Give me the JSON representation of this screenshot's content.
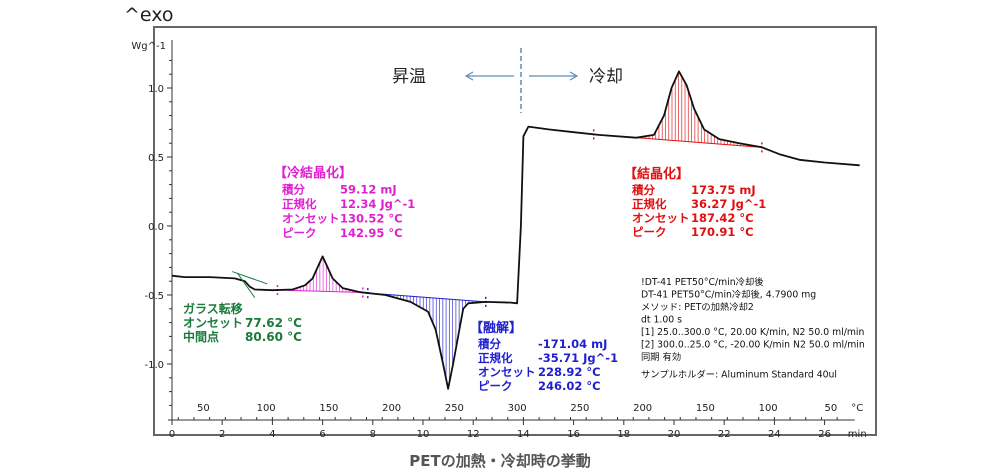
{
  "exo_label": "^exo",
  "caption": "PETの加熱・冷却時の挙動",
  "direction": {
    "heating": "昇温",
    "cooling": "冷却"
  },
  "chart_data": {
    "type": "line",
    "title": "PETの加熱・冷却時の挙動",
    "ylabel": "Wg^-1",
    "ylim": [
      -1.35,
      1.25
    ],
    "yticks": [
      1.0,
      0.5,
      0.0,
      -0.5,
      -1.0
    ],
    "ytick_labels": [
      "1.0",
      "0.5",
      "0.0",
      "-0.5",
      "-1.0"
    ],
    "xlabel": "min",
    "xlim": [
      0,
      27.5
    ],
    "xticks": [
      0,
      2,
      4,
      6,
      8,
      10,
      12,
      14,
      16,
      18,
      20,
      22,
      24,
      26
    ],
    "xtick_labels": [
      "0",
      "2",
      "4",
      "6",
      "8",
      "10",
      "12",
      "14",
      "16",
      "18",
      "20",
      "22",
      "24",
      "26"
    ],
    "temp_axis_label": "°C",
    "temp_ticks": [
      {
        "min": 1.25,
        "label": "50"
      },
      {
        "min": 3.75,
        "label": "100"
      },
      {
        "min": 6.25,
        "label": "150"
      },
      {
        "min": 8.75,
        "label": "200"
      },
      {
        "min": 11.25,
        "label": "250"
      },
      {
        "min": 13.75,
        "label": "300"
      },
      {
        "min": 16.25,
        "label": "250"
      },
      {
        "min": 18.75,
        "label": "200"
      },
      {
        "min": 21.25,
        "label": "150"
      },
      {
        "min": 23.75,
        "label": "100"
      },
      {
        "min": 26.25,
        "label": "50"
      }
    ],
    "curve": [
      [
        0.0,
        -0.36
      ],
      [
        0.5,
        -0.37
      ],
      [
        1.5,
        -0.37
      ],
      [
        2.5,
        -0.38
      ],
      [
        2.9,
        -0.4
      ],
      [
        3.1,
        -0.44
      ],
      [
        3.3,
        -0.46
      ],
      [
        4.0,
        -0.465
      ],
      [
        4.8,
        -0.46
      ],
      [
        5.3,
        -0.43
      ],
      [
        5.6,
        -0.38
      ],
      [
        5.85,
        -0.28
      ],
      [
        6.0,
        -0.22
      ],
      [
        6.15,
        -0.28
      ],
      [
        6.4,
        -0.38
      ],
      [
        6.8,
        -0.45
      ],
      [
        7.5,
        -0.48
      ],
      [
        8.5,
        -0.5
      ],
      [
        9.5,
        -0.55
      ],
      [
        10.2,
        -0.62
      ],
      [
        10.5,
        -0.75
      ],
      [
        10.8,
        -1.0
      ],
      [
        11.0,
        -1.18
      ],
      [
        11.2,
        -1.0
      ],
      [
        11.45,
        -0.75
      ],
      [
        11.6,
        -0.6
      ],
      [
        11.8,
        -0.56
      ],
      [
        12.5,
        -0.55
      ],
      [
        13.5,
        -0.555
      ],
      [
        13.75,
        -0.56
      ],
      [
        13.9,
        0.0
      ],
      [
        14.0,
        0.65
      ],
      [
        14.2,
        0.72
      ],
      [
        15.0,
        0.7
      ],
      [
        16.0,
        0.68
      ],
      [
        17.0,
        0.66
      ],
      [
        18.5,
        0.64
      ],
      [
        19.2,
        0.66
      ],
      [
        19.6,
        0.8
      ],
      [
        19.9,
        1.0
      ],
      [
        20.2,
        1.12
      ],
      [
        20.5,
        1.02
      ],
      [
        20.8,
        0.85
      ],
      [
        21.2,
        0.7
      ],
      [
        21.8,
        0.63
      ],
      [
        22.6,
        0.6
      ],
      [
        23.5,
        0.57
      ],
      [
        24.2,
        0.52
      ],
      [
        25.0,
        0.48
      ],
      [
        26.0,
        0.46
      ],
      [
        27.4,
        0.44
      ]
    ],
    "annotations": {
      "glass_transition": {
        "title": "ガラス転移",
        "rows": [
          {
            "label": "オンセット",
            "value": "77.62 °C"
          },
          {
            "label": "中間点",
            "value": "80.60 °C"
          }
        ],
        "color": "#1a7a3a"
      },
      "cold_crystallization": {
        "title": "【冷結晶化】",
        "rows": [
          {
            "label": "積分",
            "value": "59.12 mJ"
          },
          {
            "label": "正規化",
            "value": "12.34 Jg^-1"
          },
          {
            "label": "オンセット",
            "value": "130.52 °C"
          },
          {
            "label": "ピーク",
            "value": "142.95 °C"
          }
        ],
        "color": "#e020d0",
        "range": [
          4.2,
          7.6
        ]
      },
      "melting": {
        "title": "【融解】",
        "rows": [
          {
            "label": "積分",
            "value": "-171.04 mJ"
          },
          {
            "label": "正規化",
            "value": "-35.71 Jg^-1"
          },
          {
            "label": "オンセット",
            "value": "228.92 °C"
          },
          {
            "label": "ピーク",
            "value": "246.02 °C"
          }
        ],
        "color": "#2020d0",
        "range": [
          7.8,
          12.5
        ]
      },
      "crystallization": {
        "title": "【結晶化】",
        "rows": [
          {
            "label": "積分",
            "value": "173.75 mJ"
          },
          {
            "label": "正規化",
            "value": "36.27 Jg^-1"
          },
          {
            "label": "オンセット",
            "value": "187.42 °C"
          },
          {
            "label": "ピーク",
            "value": "170.91 °C"
          }
        ],
        "color": "#e01010",
        "range": [
          16.8,
          23.5
        ]
      }
    },
    "info_lines": [
      "!DT-41 PET50°C/min冷却後",
      "DT-41 PET50°C/min冷却後, 4.7900 mg",
      "メソッド: PETの加熱冷却2",
      "dt 1.00 s",
      "[1] 25.0..300.0 °C, 20.00 K/min, N2 50.0 ml/min",
      "[2] 300.0..25.0 °C, -20.00 K/min  N2 50.0 ml/min",
      "同期 有効",
      "サンプルホルダー: Aluminum Standard 40ul"
    ]
  }
}
